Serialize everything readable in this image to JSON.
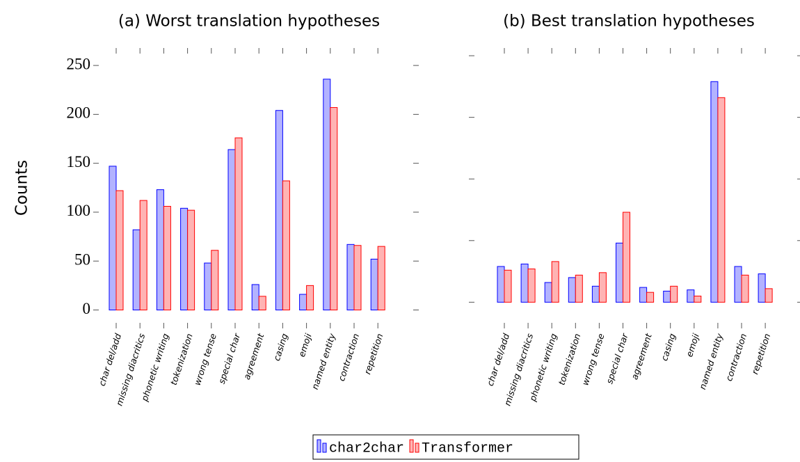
{
  "chart_data": [
    {
      "type": "bar",
      "title": "(a) Worst translation hypotheses",
      "ylabel": "Counts",
      "categories": [
        "char del/add",
        "missing diacritics",
        "phonetic writing",
        "tokenization",
        "wrong tense",
        "special char",
        "agreement",
        "casing",
        "emoji",
        "named entity",
        "contraction",
        "repetition"
      ],
      "series": [
        {
          "name": "char2char",
          "color": "#0000ff",
          "fill": "#b3b3ff",
          "values": [
            147,
            82,
            123,
            104,
            48,
            164,
            26,
            204,
            16,
            236,
            67,
            52
          ]
        },
        {
          "name": "Transformer",
          "color": "#ff0000",
          "fill": "#ffb3b3",
          "values": [
            122,
            112,
            106,
            102,
            61,
            176,
            14,
            132,
            25,
            207,
            66,
            65
          ]
        }
      ],
      "ylim": [
        -16,
        265
      ],
      "yticks": [
        0,
        50,
        100,
        150,
        200,
        250
      ],
      "ytick_labels": true,
      "legend": "bottom"
    },
    {
      "type": "bar",
      "title": "(b) Best translation hypotheses",
      "categories": [
        "char del/add",
        "missing diacritics",
        "phonetic writing",
        "tokenization",
        "wrong tense",
        "special char",
        "agreement",
        "casing",
        "emoji",
        "named entity",
        "contraction",
        "repetition"
      ],
      "series": [
        {
          "color": "#0000ff",
          "fill": "#b3b3ff",
          "values": [
            29,
            31,
            16,
            20,
            13,
            48,
            12,
            9,
            10,
            179,
            29,
            23
          ]
        },
        {
          "color": "#ff0000",
          "fill": "#ffb3b3",
          "values": [
            26,
            27,
            33,
            22,
            24,
            73,
            8,
            13,
            5,
            166,
            22,
            11
          ]
        }
      ],
      "ylim": [
        -19,
        204
      ],
      "yticks": [
        0,
        50,
        100,
        150,
        200
      ],
      "ytick_labels": false
    }
  ]
}
